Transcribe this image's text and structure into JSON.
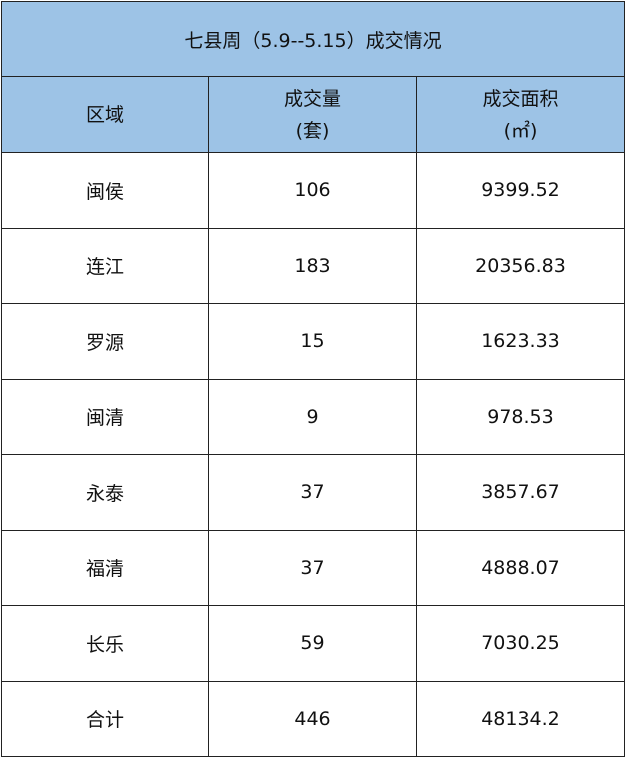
{
  "title": "七县周（5.9--5.15）成交情况",
  "header_color": "#9DC3E6",
  "columns": [
    {
      "line1": "区域",
      "line2": ""
    },
    {
      "line1": "成交量",
      "line2": "(套)"
    },
    {
      "line1": "成交面积",
      "line2": "(㎡)"
    }
  ],
  "rows": [
    {
      "region": "闽侯",
      "count": "106",
      "area": "9399.52"
    },
    {
      "region": "连江",
      "count": "183",
      "area": "20356.83"
    },
    {
      "region": "罗源",
      "count": "15",
      "area": "1623.33"
    },
    {
      "region": "闽清",
      "count": "9",
      "area": "978.53"
    },
    {
      "region": "永泰",
      "count": "37",
      "area": "3857.67"
    },
    {
      "region": "福清",
      "count": "37",
      "area": "4888.07"
    },
    {
      "region": "长乐",
      "count": "59",
      "area": "7030.25"
    },
    {
      "region": "合计",
      "count": "446",
      "area": "48134.2"
    }
  ]
}
